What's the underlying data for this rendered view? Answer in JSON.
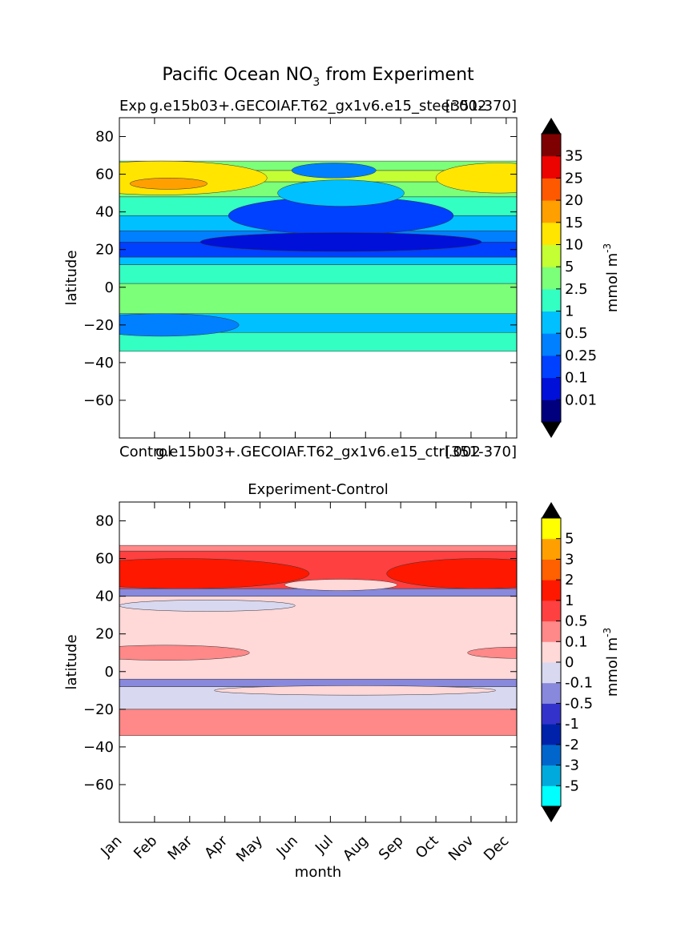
{
  "figure_title": "Pacific Ocean NO",
  "figure_title_sub": "3",
  "figure_title_tail": " from Experiment",
  "top_panel": {
    "title_left": "Exp",
    "title_center": "g.e15b03+.GECOIAF.T62_gx1v6.e15_steer.002",
    "title_right": "[351-370]"
  },
  "between_panels": {
    "title_left": "Control",
    "title_center": "g.e15b03+.GECOIAF.T62_gx1v6.e15_ctrl.002",
    "title_right": "[351-370]"
  },
  "bottom_panel": {
    "title": "Experiment-Control"
  },
  "xlabel": "month",
  "ylabel": "latitude",
  "colorbar_label": "mmol m",
  "colorbar_label_sup": "-3",
  "chart_data": [
    {
      "type": "heatmap",
      "title": "Exp  g.e15b03+.GECOIAF.T62_gx1v6.e15_steer.002  [351-370]",
      "xlabel": "",
      "ylabel": "latitude",
      "xlim": [
        0,
        11.3
      ],
      "ylim": [
        -80,
        90
      ],
      "x": [
        "Jan",
        "Feb",
        "Mar",
        "Apr",
        "May",
        "Jun",
        "Jul",
        "Aug",
        "Sep",
        "Oct",
        "Nov",
        "Dec"
      ],
      "yticks": [
        80,
        60,
        40,
        20,
        0,
        -20,
        -40,
        -60
      ],
      "data_lat_range": [
        -34,
        67
      ],
      "colorbar": {
        "levels": [
          "0.01",
          "0.1",
          "0.25",
          "0.5",
          "1",
          "2.5",
          "5",
          "10",
          "15",
          "20",
          "25",
          "35"
        ],
        "colors": [
          "#00007f",
          "#0010d9",
          "#0040ff",
          "#0080ff",
          "#00c0ff",
          "#33ffc3",
          "#7cff79",
          "#c4ff33",
          "#ffe500",
          "#ff9f00",
          "#ff5900",
          "#ec0300",
          "#7f0000"
        ],
        "extend": "both",
        "label": "mmol m^-3"
      },
      "bands": [
        {
          "lat": [
            -34,
            -24
          ],
          "level": "1"
        },
        {
          "lat": [
            -24,
            -14
          ],
          "level": "0.5"
        },
        {
          "lat": [
            -14,
            2
          ],
          "level": "2.5"
        },
        {
          "lat": [
            2,
            12
          ],
          "level": "1"
        },
        {
          "lat": [
            12,
            16
          ],
          "level": "0.5"
        },
        {
          "lat": [
            16,
            24
          ],
          "level": "0.1"
        },
        {
          "lat": [
            24,
            30
          ],
          "level": "0.25"
        },
        {
          "lat": [
            30,
            38
          ],
          "level": "0.5"
        },
        {
          "lat": [
            38,
            48
          ],
          "level": "1"
        },
        {
          "lat": [
            48,
            56
          ],
          "level": "2.5"
        },
        {
          "lat": [
            56,
            62
          ],
          "level": "5"
        },
        {
          "lat": [
            62,
            67
          ],
          "level": "2.5"
        }
      ]
    },
    {
      "type": "heatmap",
      "title": "Experiment-Control",
      "xlabel": "month",
      "ylabel": "latitude",
      "xlim": [
        0,
        11.3
      ],
      "ylim": [
        -80,
        90
      ],
      "x": [
        "Jan",
        "Feb",
        "Mar",
        "Apr",
        "May",
        "Jun",
        "Jul",
        "Aug",
        "Sep",
        "Oct",
        "Nov",
        "Dec"
      ],
      "yticks": [
        80,
        60,
        40,
        20,
        0,
        -20,
        -40,
        -60
      ],
      "data_lat_range": [
        -34,
        67
      ],
      "colorbar": {
        "levels": [
          "-5",
          "-3",
          "-2",
          "-1",
          "-0.5",
          "-0.1",
          "0",
          "0.1",
          "0.5",
          "1",
          "2",
          "3",
          "5"
        ],
        "colors": [
          "#00ffff",
          "#00aadd",
          "#0066cc",
          "#0022aa",
          "#3333cc",
          "#8888dd",
          "#d8d8f0",
          "#ffd8d8",
          "#ff8888",
          "#ff4040",
          "#ff1800",
          "#ff6000",
          "#ffa000",
          "#ffff00"
        ],
        "extend": "both",
        "label": "mmol m^-3"
      },
      "bands": [
        {
          "lat": [
            -34,
            -20
          ],
          "level": "0.1"
        },
        {
          "lat": [
            -20,
            -8
          ],
          "level": "-0.1"
        },
        {
          "lat": [
            -8,
            -4
          ],
          "level": "-0.5"
        },
        {
          "lat": [
            -4,
            40
          ],
          "level": "0"
        },
        {
          "lat": [
            40,
            44
          ],
          "level": "-0.5"
        },
        {
          "lat": [
            44,
            64
          ],
          "level": "0.5"
        },
        {
          "lat": [
            64,
            67
          ],
          "level": "0.1"
        }
      ]
    }
  ]
}
